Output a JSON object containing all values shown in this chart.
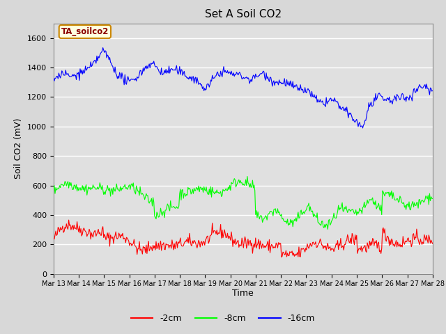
{
  "title": "Set A Soil CO2",
  "ylabel": "Soil CO2 (mV)",
  "xlabel": "Time",
  "legend_label": "TA_soilco2",
  "series_labels": [
    "-2cm",
    "-8cm",
    "-16cm"
  ],
  "series_colors": [
    "red",
    "lime",
    "blue"
  ],
  "x_tick_labels": [
    "Mar 13",
    "Mar 14",
    "Mar 15",
    "Mar 16",
    "Mar 17",
    "Mar 18",
    "Mar 19",
    "Mar 20",
    "Mar 21",
    "Mar 22",
    "Mar 23",
    "Mar 24",
    "Mar 25",
    "Mar 26",
    "Mar 27",
    "Mar 28"
  ],
  "ylim": [
    0,
    1700
  ],
  "yticks": [
    0,
    200,
    400,
    600,
    800,
    1000,
    1200,
    1400,
    1600
  ],
  "bg_color": "#d8d8d8",
  "plot_bg_color": "#e0e0e0",
  "grid_color": "white",
  "n_points": 500,
  "seed": 42
}
